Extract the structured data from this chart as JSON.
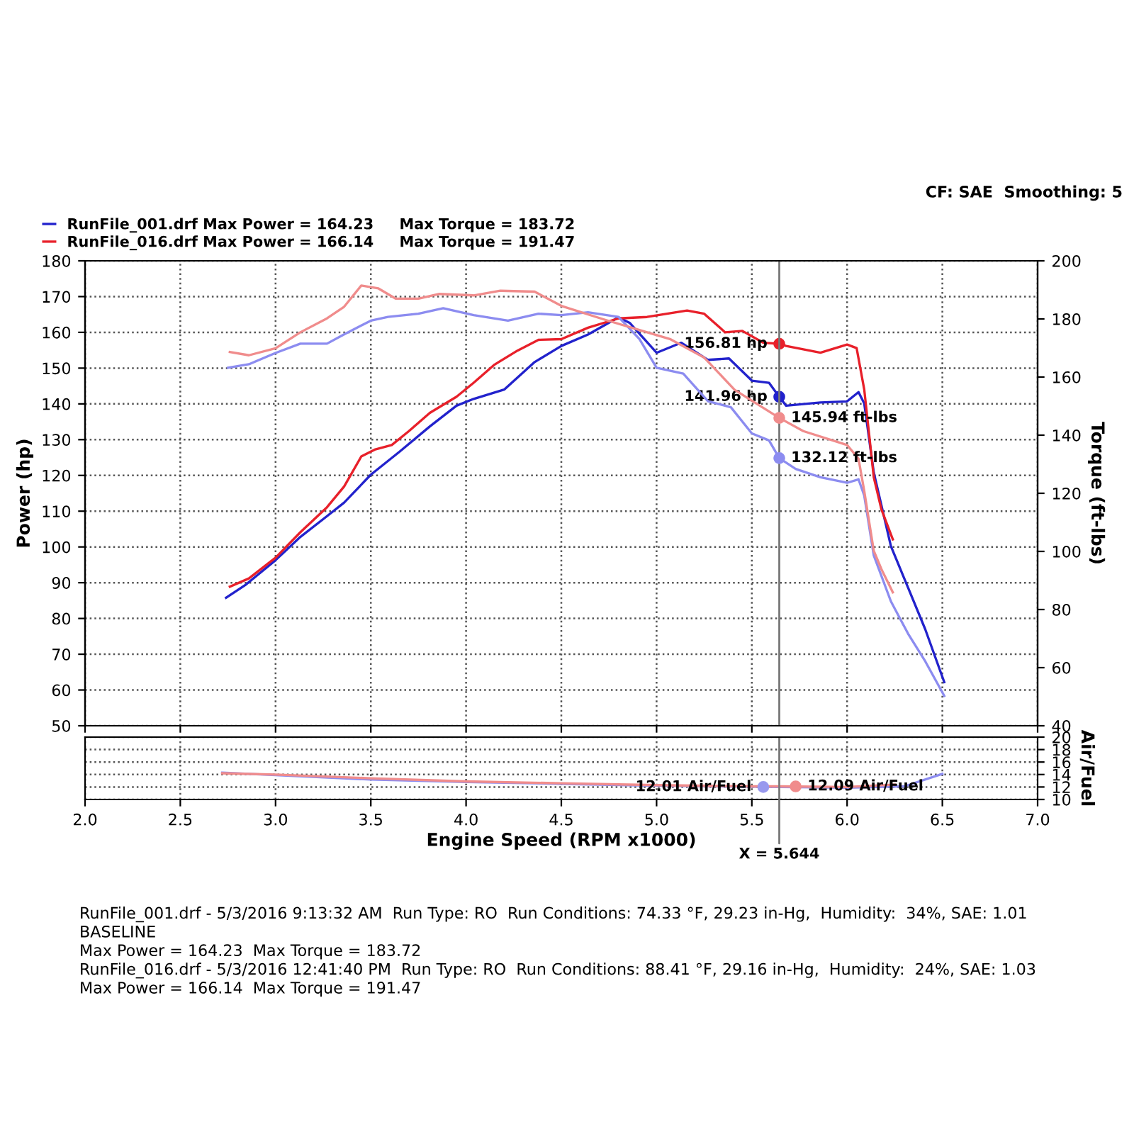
{
  "chart_data": [
    {
      "type": "line",
      "ylabel": "Power (hp)",
      "y2label": "Torque (ft-lbs)",
      "legend": "top left",
      "grid": true,
      "marker": "none",
      "line_style": "solid",
      "tick_labels": "y",
      "xlim": [
        2.0,
        7.0
      ],
      "xticks": [
        {
          "value": 2.0,
          "label": null
        },
        {
          "value": 2.5,
          "label": null
        },
        {
          "value": 3.0,
          "label": null
        },
        {
          "value": 3.5,
          "label": null
        },
        {
          "value": 4.0,
          "label": null
        },
        {
          "value": 4.5,
          "label": null
        },
        {
          "value": 5.0,
          "label": null
        },
        {
          "value": 5.5,
          "label": null
        },
        {
          "value": 6.0,
          "label": null
        },
        {
          "value": 6.5,
          "label": null
        },
        {
          "value": 7.0,
          "label": null
        }
      ],
      "ylim": [
        50,
        180
      ],
      "yticks": [
        50,
        60,
        70,
        80,
        90,
        100,
        110,
        120,
        130,
        140,
        150,
        160,
        170,
        180
      ],
      "y2lim": [
        40,
        200
      ],
      "y2ticks": [
        40,
        60,
        80,
        100,
        120,
        140,
        160,
        180,
        200
      ],
      "series": [
        {
          "name": "RunFile_001.drf Max Power = 164.23     Max Torque = 183.72",
          "color": "#2222cc",
          "x": [
            2.74,
            2.84,
            3.0,
            3.13,
            3.27,
            3.36,
            3.5,
            3.65,
            3.81,
            3.95,
            4.04,
            4.2,
            4.36,
            4.5,
            4.64,
            4.8,
            4.86,
            5.0,
            5.13,
            5.27,
            5.38,
            5.5,
            5.59,
            5.644,
            5.68,
            5.86,
            6.0,
            6.06,
            6.09,
            6.14,
            6.23,
            6.32,
            6.41,
            6.51
          ],
          "values": [
            85.8,
            89.3,
            96.3,
            102.8,
            108.6,
            112.4,
            120.2,
            126.6,
            133.7,
            139.5,
            141.4,
            144.0,
            151.7,
            156.2,
            159.4,
            164.2,
            162.6,
            154.3,
            157.1,
            152.3,
            152.7,
            146.5,
            145.9,
            141.96,
            139.5,
            140.4,
            140.7,
            143.3,
            140.1,
            120.8,
            100.2,
            88.6,
            77.0,
            62.2
          ],
          "value_labels": [
            null,
            null,
            null,
            null,
            null,
            null,
            null,
            null,
            null,
            null,
            null,
            null,
            null,
            null,
            null,
            null,
            null,
            null,
            null,
            null,
            null,
            null,
            null,
            "141.96 hp",
            null,
            null,
            null,
            null,
            null,
            null,
            null,
            null,
            null,
            null
          ]
        },
        {
          "name": "RunFile_016.drf Max Power = 166.14     Max Torque = 191.47",
          "color": "#e8202a",
          "x": [
            2.76,
            2.86,
            3.0,
            3.13,
            3.27,
            3.36,
            3.45,
            3.52,
            3.61,
            3.7,
            3.81,
            3.95,
            4.04,
            4.15,
            4.27,
            4.38,
            4.5,
            4.64,
            4.8,
            4.95,
            5.16,
            5.25,
            5.36,
            5.45,
            5.56,
            5.644,
            5.68,
            5.86,
            6.0,
            6.05,
            6.09,
            6.14,
            6.18,
            6.24
          ],
          "values": [
            88.9,
            91.2,
            97.0,
            104.1,
            111.1,
            116.9,
            125.3,
            127.2,
            128.5,
            132.4,
            137.5,
            142.0,
            145.9,
            151.0,
            154.9,
            157.9,
            158.1,
            161.3,
            163.9,
            164.3,
            166.1,
            165.2,
            160.0,
            160.4,
            157.1,
            156.81,
            156.2,
            154.3,
            156.6,
            155.6,
            144.0,
            119.5,
            110.5,
            102.1
          ],
          "value_labels": [
            null,
            null,
            null,
            null,
            null,
            null,
            null,
            null,
            null,
            null,
            null,
            null,
            null,
            null,
            null,
            null,
            null,
            null,
            null,
            null,
            null,
            null,
            null,
            null,
            null,
            "156.81 hp",
            null,
            null,
            null,
            null,
            null,
            null,
            null,
            null
          ]
        },
        {
          "axis": "y2",
          "color": "#8c8cf0",
          "x": [
            2.75,
            2.86,
            3.0,
            3.13,
            3.27,
            3.36,
            3.5,
            3.59,
            3.75,
            3.88,
            4.04,
            4.22,
            4.38,
            4.5,
            4.64,
            4.8,
            4.91,
            5.0,
            5.14,
            5.27,
            5.39,
            5.5,
            5.59,
            5.644,
            5.73,
            5.86,
            6.0,
            6.06,
            6.09,
            6.14,
            6.23,
            6.32,
            6.41,
            6.51
          ],
          "values": [
            163.2,
            164.4,
            168.3,
            171.5,
            171.5,
            174.7,
            179.4,
            180.7,
            181.8,
            183.7,
            181.3,
            179.4,
            181.8,
            181.3,
            182.3,
            180.7,
            173.1,
            163.2,
            161.2,
            151.7,
            149.6,
            140.6,
            138.2,
            132.12,
            128.4,
            125.5,
            123.6,
            124.8,
            119.2,
            98.6,
            82.8,
            71.7,
            62.2,
            50.3
          ],
          "value_labels": [
            null,
            null,
            null,
            null,
            null,
            null,
            null,
            null,
            null,
            null,
            null,
            null,
            null,
            null,
            null,
            null,
            null,
            null,
            null,
            null,
            null,
            null,
            null,
            "132.12 ft-lbs",
            null,
            null,
            null,
            null,
            null,
            null,
            null,
            null,
            null,
            null
          ]
        },
        {
          "axis": "y2",
          "color": "#f08c8c",
          "x": [
            2.76,
            2.86,
            3.0,
            3.13,
            3.27,
            3.36,
            3.45,
            3.54,
            3.63,
            3.75,
            3.86,
            4.04,
            4.18,
            4.36,
            4.5,
            4.73,
            4.91,
            5.07,
            5.25,
            5.41,
            5.644,
            5.77,
            6.0,
            6.06,
            6.09,
            6.14,
            6.18,
            6.24
          ],
          "values": [
            168.6,
            167.5,
            169.9,
            175.4,
            180.2,
            184.2,
            191.5,
            190.5,
            187.0,
            187.0,
            188.6,
            188.1,
            189.7,
            189.4,
            184.5,
            179.7,
            176.2,
            173.1,
            166.7,
            155.6,
            145.94,
            141.4,
            136.6,
            131.9,
            120.8,
            100.2,
            93.9,
            85.9
          ],
          "value_labels": [
            null,
            null,
            null,
            null,
            null,
            null,
            null,
            null,
            null,
            null,
            null,
            null,
            null,
            null,
            null,
            null,
            null,
            null,
            null,
            null,
            "145.94 ft-lbs",
            null,
            null,
            null,
            null,
            null,
            null,
            null
          ]
        }
      ],
      "ref_lines": [
        {
          "axis": "x",
          "value": 5.644,
          "color": "#777777"
        }
      ],
      "annotations": [
        "CF: SAE  Smoothing: 5"
      ]
    },
    {
      "type": "line",
      "xlabel": "Engine Speed (RPM x1000)",
      "ylabel": "Air/Fuel",
      "grid": true,
      "marker": "none",
      "line_style": "solid",
      "xlim": [
        2.0,
        7.0
      ],
      "xticks": [
        {
          "value": 2.0,
          "label": "2.0"
        },
        {
          "value": 2.5,
          "label": "2.5"
        },
        {
          "value": 3.0,
          "label": "3.0"
        },
        {
          "value": 3.5,
          "label": "3.5"
        },
        {
          "value": 4.0,
          "label": "4.0"
        },
        {
          "value": 4.5,
          "label": "4.5"
        },
        {
          "value": 5.0,
          "label": "5.0"
        },
        {
          "value": 5.5,
          "label": "5.5"
        },
        {
          "value": 6.0,
          "label": "6.0"
        },
        {
          "value": 6.5,
          "label": "6.5"
        },
        {
          "value": 7.0,
          "label": "7.0"
        }
      ],
      "ylim": [
        10,
        20
      ],
      "yticks": [
        10,
        12,
        14,
        16,
        18,
        20
      ],
      "series": [
        {
          "color": "#8c8cf0",
          "x": [
            2.72,
            3.0,
            3.5,
            4.0,
            4.5,
            5.0,
            5.644,
            6.0,
            6.3,
            6.5
          ],
          "values": [
            14.3,
            13.9,
            13.2,
            12.8,
            12.5,
            12.2,
            12.0,
            11.9,
            12.1,
            14.1
          ]
        },
        {
          "color": "#f08c8c",
          "x": [
            2.72,
            3.0,
            3.5,
            4.0,
            4.5,
            5.0,
            5.5,
            5.644,
            6.0,
            6.25
          ],
          "values": [
            14.2,
            14.0,
            13.4,
            12.9,
            12.6,
            12.3,
            12.1,
            12.1,
            12.0,
            12.4
          ]
        }
      ],
      "ref_lines": [
        {
          "axis": "x",
          "value": 5.644,
          "label": "X = 5.644",
          "color": "#777777"
        }
      ],
      "annotations": [
        {
          "text": "12.01 Air/Fuel",
          "x": 5.56,
          "y": 12.0
        },
        {
          "text": "12.09 Air/Fuel",
          "x": 5.73,
          "y": 12.1
        },
        "RunFile_001.drf - 5/3/2016 9:13:32 AM  Run Type: RO  Run Conditions: 74.33 °F, 29.23 in-Hg,  Humidity:  34%, SAE: 1.01",
        "BASELINE",
        "Max Power = 164.23  Max Torque = 183.72",
        "RunFile_016.drf - 5/3/2016 12:41:40 PM  Run Type: RO  Run Conditions: 88.41 °F, 29.16 in-Hg,  Humidity:  24%, SAE: 1.03",
        "Max Power = 166.14  Max Torque = 191.47"
      ]
    }
  ]
}
